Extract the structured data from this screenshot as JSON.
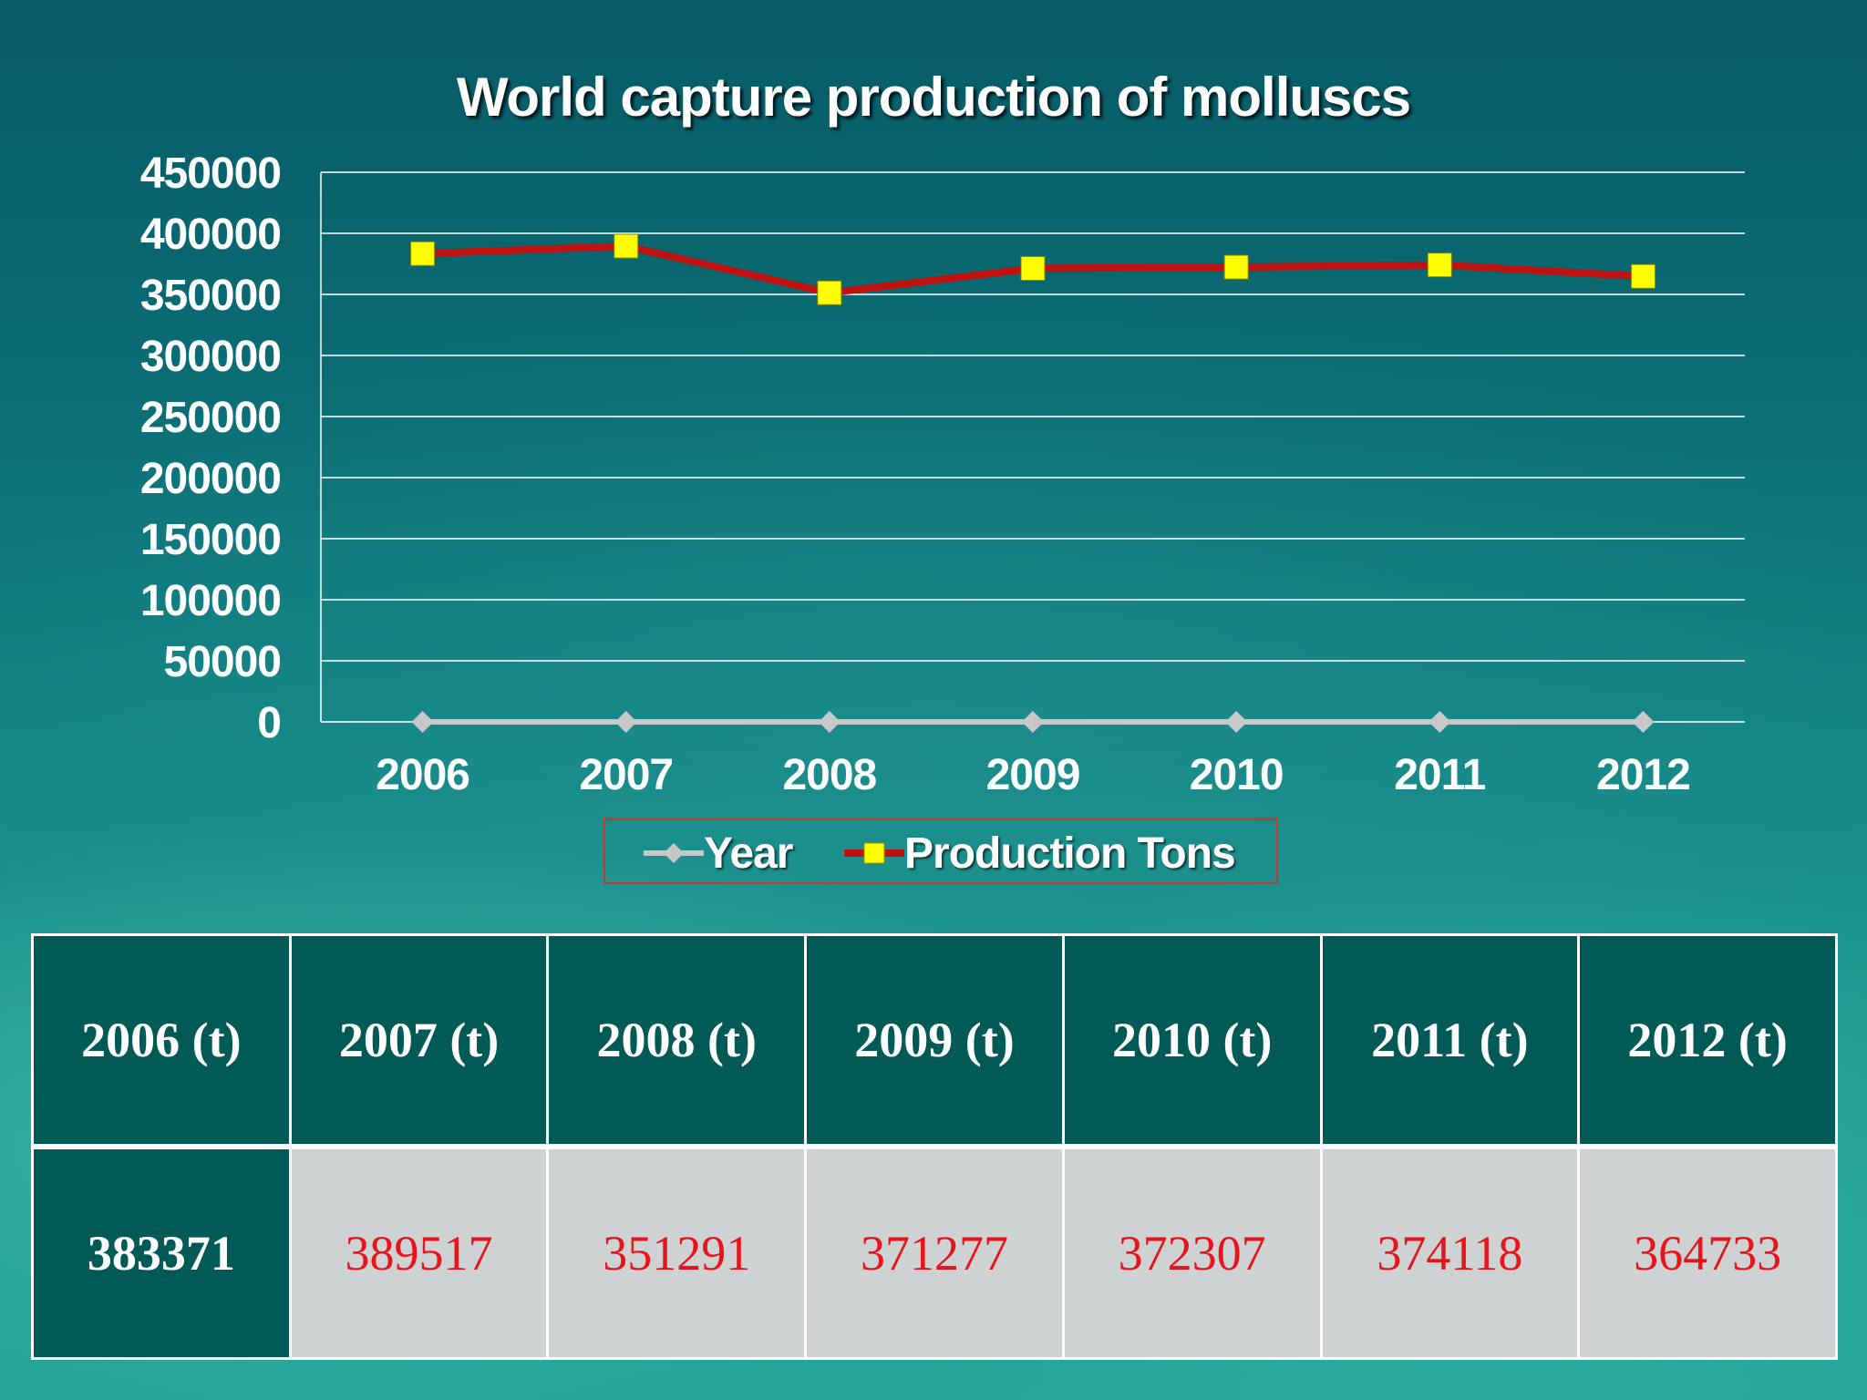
{
  "chart_data": {
    "type": "line",
    "title": "World capture production of molluscs",
    "categories": [
      "2006",
      "2007",
      "2008",
      "2009",
      "2010",
      "2011",
      "2012"
    ],
    "ylim": [
      0,
      450000
    ],
    "y_ticks": [
      "0",
      "50000",
      "100000",
      "150000",
      "200000",
      "250000",
      "300000",
      "350000",
      "400000",
      "450000"
    ],
    "grid": true,
    "legend_position": "bottom",
    "series": [
      {
        "name": "Year",
        "values": [
          0,
          0,
          0,
          0,
          0,
          0,
          0
        ],
        "color": "#c8c8c8",
        "marker": "diamond"
      },
      {
        "name": "Production Tons",
        "values": [
          383371,
          389517,
          351291,
          371277,
          372307,
          374118,
          364733
        ],
        "color": "#c01010",
        "marker": "square",
        "marker_color": "#ffff00"
      }
    ]
  },
  "table": {
    "headers": [
      "2006 (t)",
      "2007 (t)",
      "2008 (t)",
      "2009 (t)",
      "2010 (t)",
      "2011 (t)",
      "2012 (t)"
    ],
    "values": [
      "383371",
      "389517",
      "351291",
      "371277",
      "372307",
      "374118",
      "364733"
    ]
  },
  "colors": {
    "header_bg": "#025a56",
    "value_bg": "#cfd2d2",
    "value_text": "#e8141c"
  }
}
